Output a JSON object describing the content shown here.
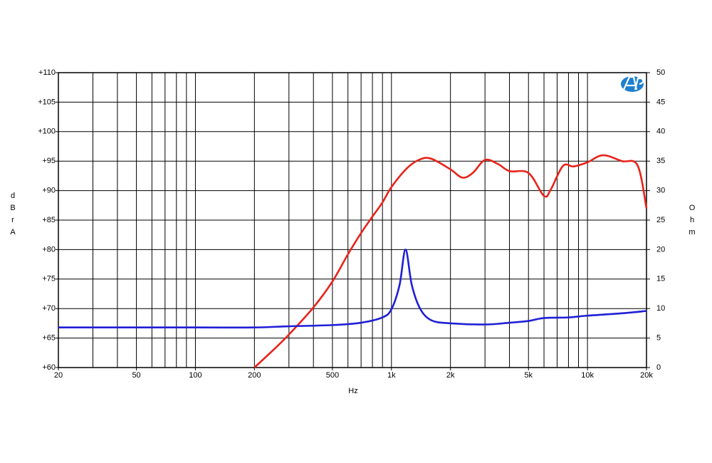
{
  "chart_data": {
    "type": "line",
    "xlabel": "Hz",
    "ylabel": "dBrA",
    "y2label": "Ohm",
    "xscale": "log",
    "grid": true,
    "xlim": [
      20,
      20000
    ],
    "xticks": [
      20,
      50,
      100,
      200,
      500,
      {
        "value": 1000,
        "label": "1k"
      },
      {
        "value": 2000,
        "label": "2k"
      },
      {
        "value": 5000,
        "label": "5k"
      },
      {
        "value": 10000,
        "label": "10k"
      },
      {
        "value": 20000,
        "label": "20k"
      }
    ],
    "xgrid": [
      30,
      40,
      50,
      60,
      70,
      80,
      90,
      100,
      200,
      300,
      400,
      500,
      600,
      700,
      800,
      900,
      1000,
      2000,
      3000,
      4000,
      5000,
      6000,
      7000,
      8000,
      9000,
      10000
    ],
    "ylim": [
      60,
      110
    ],
    "yticks": [
      {
        "value": 60,
        "label": "+60"
      },
      {
        "value": 65,
        "label": "+65"
      },
      {
        "value": 70,
        "label": "+70"
      },
      {
        "value": 75,
        "label": "+75"
      },
      {
        "value": 80,
        "label": "+80"
      },
      {
        "value": 85,
        "label": "+85"
      },
      {
        "value": 90,
        "label": "+90"
      },
      {
        "value": 95,
        "label": "+95"
      },
      {
        "value": 100,
        "label": "+100"
      },
      {
        "value": 105,
        "label": "+105"
      },
      {
        "value": 110,
        "label": "+110"
      }
    ],
    "y2lim": [
      0,
      50
    ],
    "y2ticks": [
      0,
      5,
      10,
      15,
      20,
      25,
      30,
      35,
      40,
      45,
      50
    ],
    "series": [
      {
        "color": "#e8231b",
        "axis": "y",
        "x": [
          200,
          250,
          300,
          400,
          500,
          600,
          700,
          800,
          900,
          1000,
          1200,
          1400,
          1600,
          2000,
          2300,
          2600,
          3000,
          3500,
          4000,
          5000,
          6000,
          6500,
          7500,
          8500,
          10000,
          12000,
          15000,
          18000,
          20000
        ],
        "values": [
          60,
          63,
          65.6,
          70.2,
          74.6,
          79.2,
          82.8,
          85.6,
          88,
          90.6,
          93.8,
          95.3,
          95.4,
          93.6,
          92.2,
          93,
          95.2,
          94.5,
          93.3,
          93,
          89.1,
          90.2,
          94.2,
          94.1,
          94.8,
          96,
          95,
          94.3,
          87
        ]
      },
      {
        "color": "#1f1fd6",
        "axis": "y2",
        "x": [
          20,
          100,
          200,
          300,
          500,
          700,
          900,
          1000,
          1100,
          1180,
          1270,
          1400,
          1600,
          2000,
          3000,
          4000,
          5000,
          6000,
          8000,
          10000,
          15000,
          20000
        ],
        "values": [
          6.8,
          6.8,
          6.8,
          7,
          7.2,
          7.6,
          8.5,
          9.9,
          14,
          20,
          14,
          10,
          8,
          7.5,
          7.3,
          7.6,
          7.9,
          8.4,
          8.5,
          8.8,
          9.2,
          9.6
        ]
      }
    ]
  }
}
